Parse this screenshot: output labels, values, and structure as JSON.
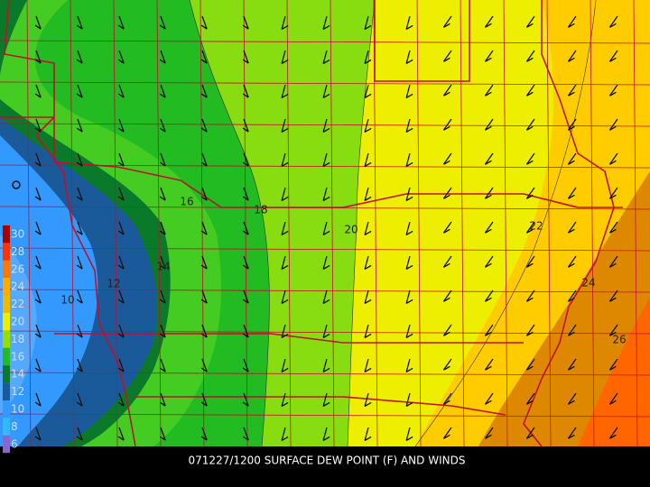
{
  "caption": "071227/1200 SURFACE DEW POINT (F) AND WINDS",
  "legend": {
    "labels": [
      30,
      28,
      26,
      24,
      22,
      20,
      18,
      16,
      14,
      12,
      10,
      8,
      6
    ]
  },
  "contour_labels": [
    "16",
    "18",
    "20",
    "22",
    "24",
    "26",
    "14",
    "12",
    "10"
  ]
}
